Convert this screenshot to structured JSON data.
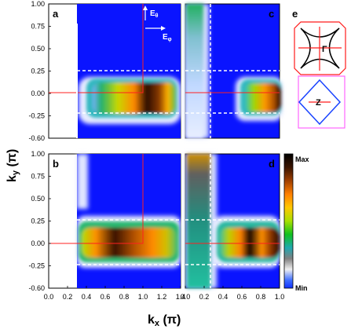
{
  "chart_data": [
    {
      "panel": "a",
      "type": "heatmap",
      "xlim": [
        0.0,
        1.4
      ],
      "ylim": [
        -0.6,
        1.0
      ],
      "x_ticks": [
        "0.0",
        "0.2",
        "0.4",
        "0.6",
        "0.8",
        "1.0",
        "1.2",
        "1.4"
      ],
      "y_ticks": [
        "1.00",
        "0.75",
        "0.50",
        "0.25",
        "0.00",
        "-0.25",
        "-0.60"
      ],
      "data_region": {
        "x": [
          0.3,
          1.4
        ],
        "y": [
          -0.6,
          1.0
        ]
      },
      "intensity_band": {
        "x": [
          0.35,
          1.35
        ],
        "y": [
          -0.22,
          0.22
        ],
        "peak_x": 0.95
      },
      "dashed_lines_y": [
        0.25,
        -0.25
      ],
      "zone_boundary": {
        "x": 1.0,
        "y": 0.0
      },
      "annotation": {
        "field_vertical": "E",
        "field_vertical_sub": "θ",
        "field_horizontal": "E",
        "field_horizontal_sub": "φ"
      }
    },
    {
      "panel": "b",
      "type": "heatmap",
      "xlim": [
        0.0,
        1.4
      ],
      "ylim": [
        -0.6,
        1.0
      ],
      "x_ticks": [
        "0.0",
        "0.2",
        "0.4",
        "0.6",
        "0.8",
        "1.0",
        "1.2",
        "1.4"
      ],
      "y_ticks": [
        "1.00",
        "0.75",
        "0.50",
        "0.25",
        "0.00",
        "-0.25",
        "-0.60"
      ],
      "data_region": {
        "x": [
          0.3,
          1.4
        ],
        "y": [
          -0.6,
          1.0
        ]
      },
      "intensity_band": {
        "x": [
          0.35,
          1.35
        ],
        "y": [
          -0.22,
          0.22
        ],
        "peak_x": 0.7
      },
      "dashed_lines_y": [
        0.25,
        -0.25
      ],
      "zone_boundary": {
        "x": 1.0,
        "y": 0.0
      }
    },
    {
      "panel": "c",
      "type": "heatmap",
      "xlim": [
        0.0,
        1.0
      ],
      "ylim": [
        -0.6,
        1.0
      ],
      "x_ticks": [],
      "y_ticks": [],
      "intensity_band": {
        "x": [
          0.55,
          1.0
        ],
        "y": [
          -0.22,
          0.22
        ],
        "peak_x": 1.0
      },
      "vertical_band": {
        "x": [
          0.0,
          0.18
        ]
      },
      "dashed_lines_y": [
        0.25,
        -0.25
      ],
      "dashed_lines_x": [
        0.25
      ],
      "zone_boundary": {
        "y": 0.0
      }
    },
    {
      "panel": "d",
      "type": "heatmap",
      "xlim": [
        0.0,
        1.0
      ],
      "ylim": [
        -0.6,
        1.0
      ],
      "x_ticks": [
        "0.0",
        "0.2",
        "0.4",
        "0.6",
        "0.8",
        "1.0"
      ],
      "y_ticks": [],
      "intensity_band": {
        "x": [
          0.35,
          1.0
        ],
        "y": [
          -0.22,
          0.22
        ],
        "peak_x": 0.6
      },
      "vertical_band": {
        "x": [
          0.0,
          0.22
        ]
      },
      "dashed_lines_y": [
        0.25,
        -0.25
      ],
      "dashed_lines_x": [
        0.25
      ],
      "zone_boundary": {
        "y": 0.0
      }
    }
  ],
  "labels": {
    "panel_a": "a",
    "panel_b": "b",
    "panel_c": "c",
    "panel_d": "d",
    "panel_e": "e",
    "xlabel_main": "k",
    "xlabel_sub": "x",
    "xlabel_unit": " (π)",
    "ylabel_main": "k",
    "ylabel_sub": "y",
    "ylabel_unit": " (π)",
    "colorbar_max": "Max",
    "colorbar_min": "Min",
    "gamma": "Γ",
    "z": "Z"
  },
  "colors": {
    "background": "#0a14ff",
    "red_outline": "#ff1a1a",
    "magenta_outline": "#ff66ff",
    "blue_fs": "#1a44ff",
    "colorbar": [
      "#000000",
      "#1a0a00",
      "#8a3a00",
      "#ff7700",
      "#ffc000",
      "#b8e000",
      "#20c020",
      "#20b0a0",
      "#707070",
      "#e8e8e8",
      "#2050ff"
    ]
  }
}
